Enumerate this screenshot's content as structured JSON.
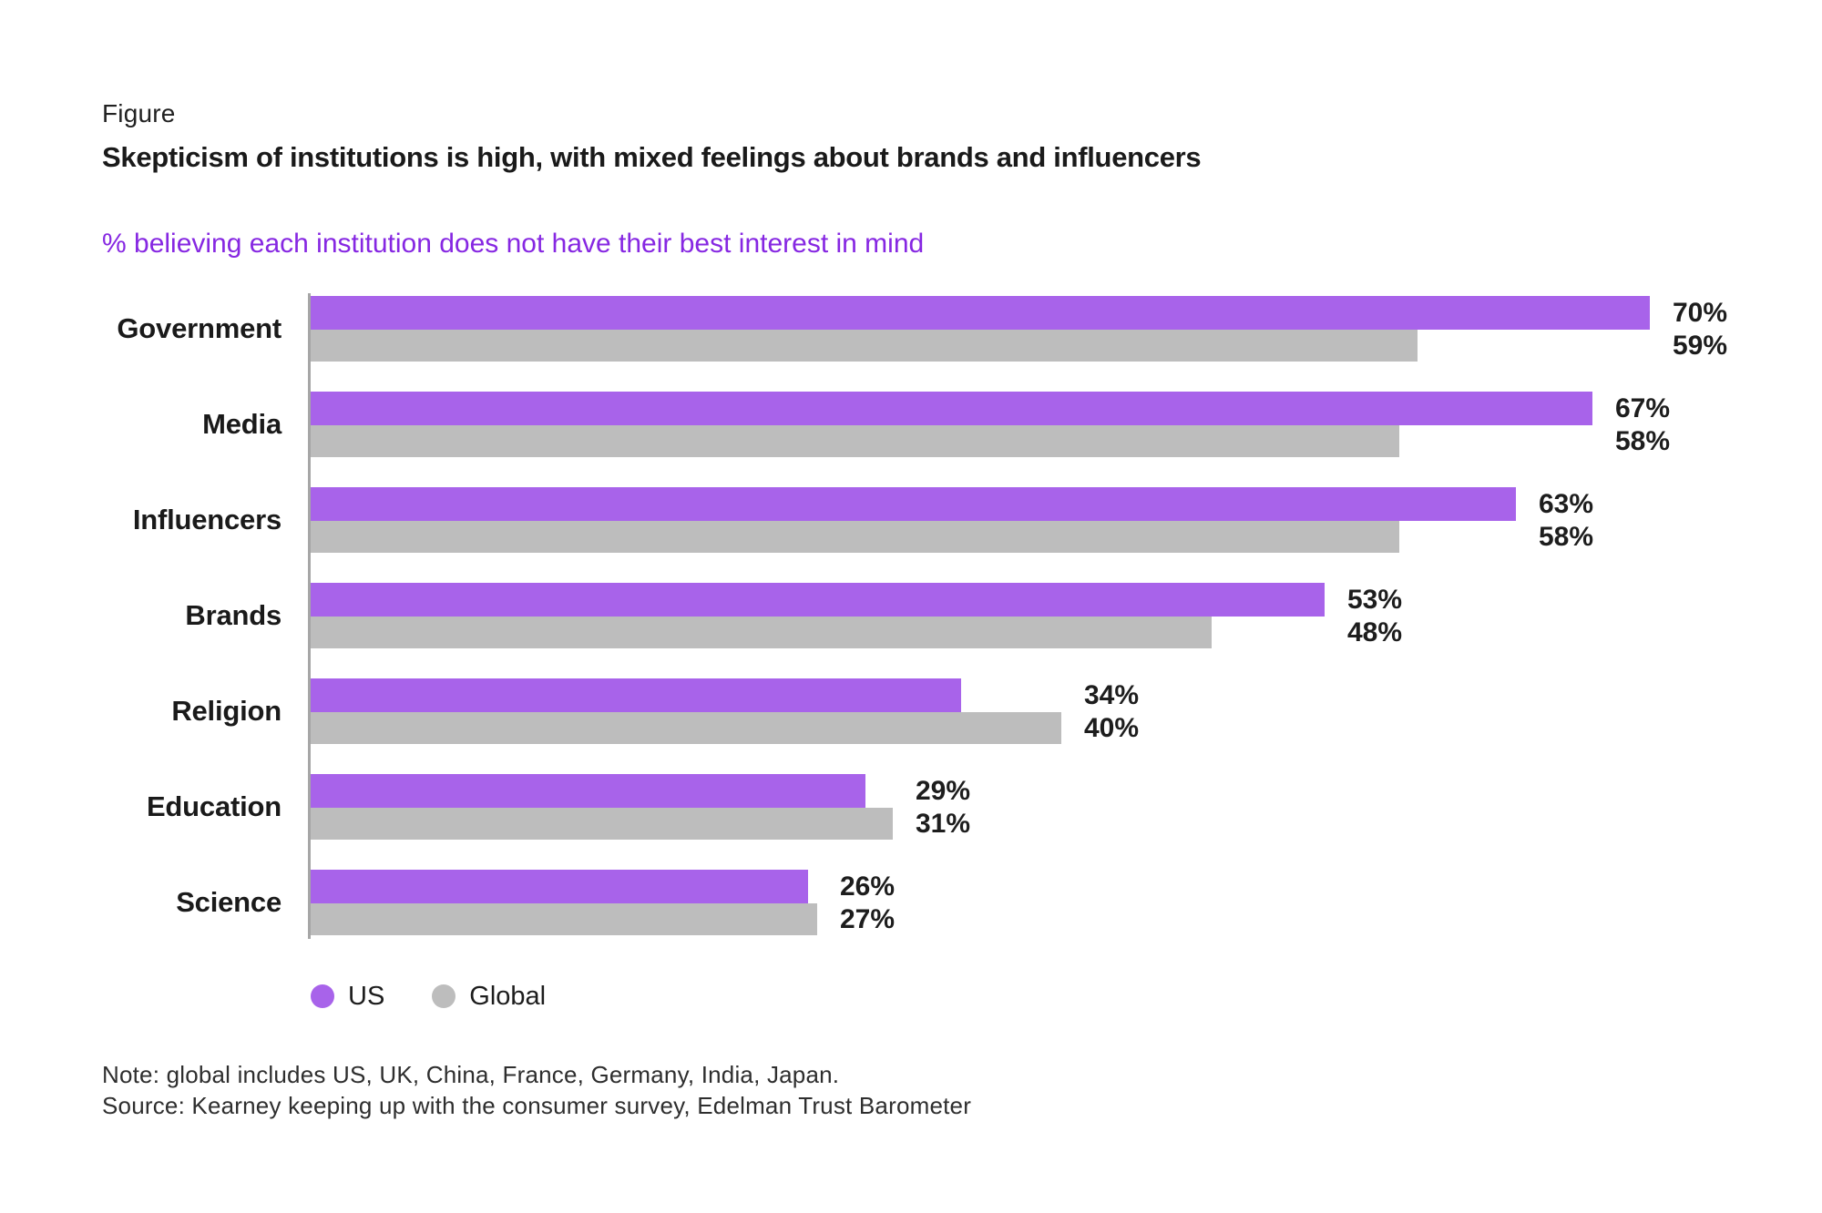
{
  "figure_label": "Figure",
  "title": "Skepticism of institutions is high, with mixed feelings about brands and influencers",
  "subtitle": "% believing each institution does not have their best interest in mind",
  "colors": {
    "us_bar": "#a863ea",
    "global_bar": "#bdbdbd",
    "subtitle_text": "#8627e2",
    "axis_line": "#a6a6a6",
    "title_text": "#1a1a1a",
    "note_text": "#2e2e2e"
  },
  "chart_data": {
    "type": "bar",
    "orientation": "horizontal",
    "title": "Skepticism of institutions is high, with mixed feelings about brands and influencers",
    "subtitle": "% believing each institution does not have their best interest in mind",
    "categories": [
      "Government",
      "Media",
      "Influencers",
      "Brands",
      "Religion",
      "Education",
      "Science"
    ],
    "series": [
      {
        "name": "US",
        "color": "#a863ea",
        "values": [
          70,
          67,
          63,
          53,
          34,
          29,
          26
        ]
      },
      {
        "name": "Global",
        "color": "#bdbdbd",
        "values": [
          59,
          58,
          58,
          48,
          40,
          31,
          27
        ]
      }
    ],
    "value_suffix": "%",
    "xlim": [
      0,
      75
    ],
    "grid": false,
    "data_labels": true,
    "legend_position": "bottom-left"
  },
  "legend": {
    "items": [
      {
        "label": "US",
        "color": "#a863ea"
      },
      {
        "label": "Global",
        "color": "#bdbdbd"
      }
    ]
  },
  "notes": {
    "note": "Note: global includes US, UK, China, France, Germany, India, Japan.",
    "source": "Source: Kearney keeping up with the consumer survey, Edelman Trust Barometer"
  }
}
